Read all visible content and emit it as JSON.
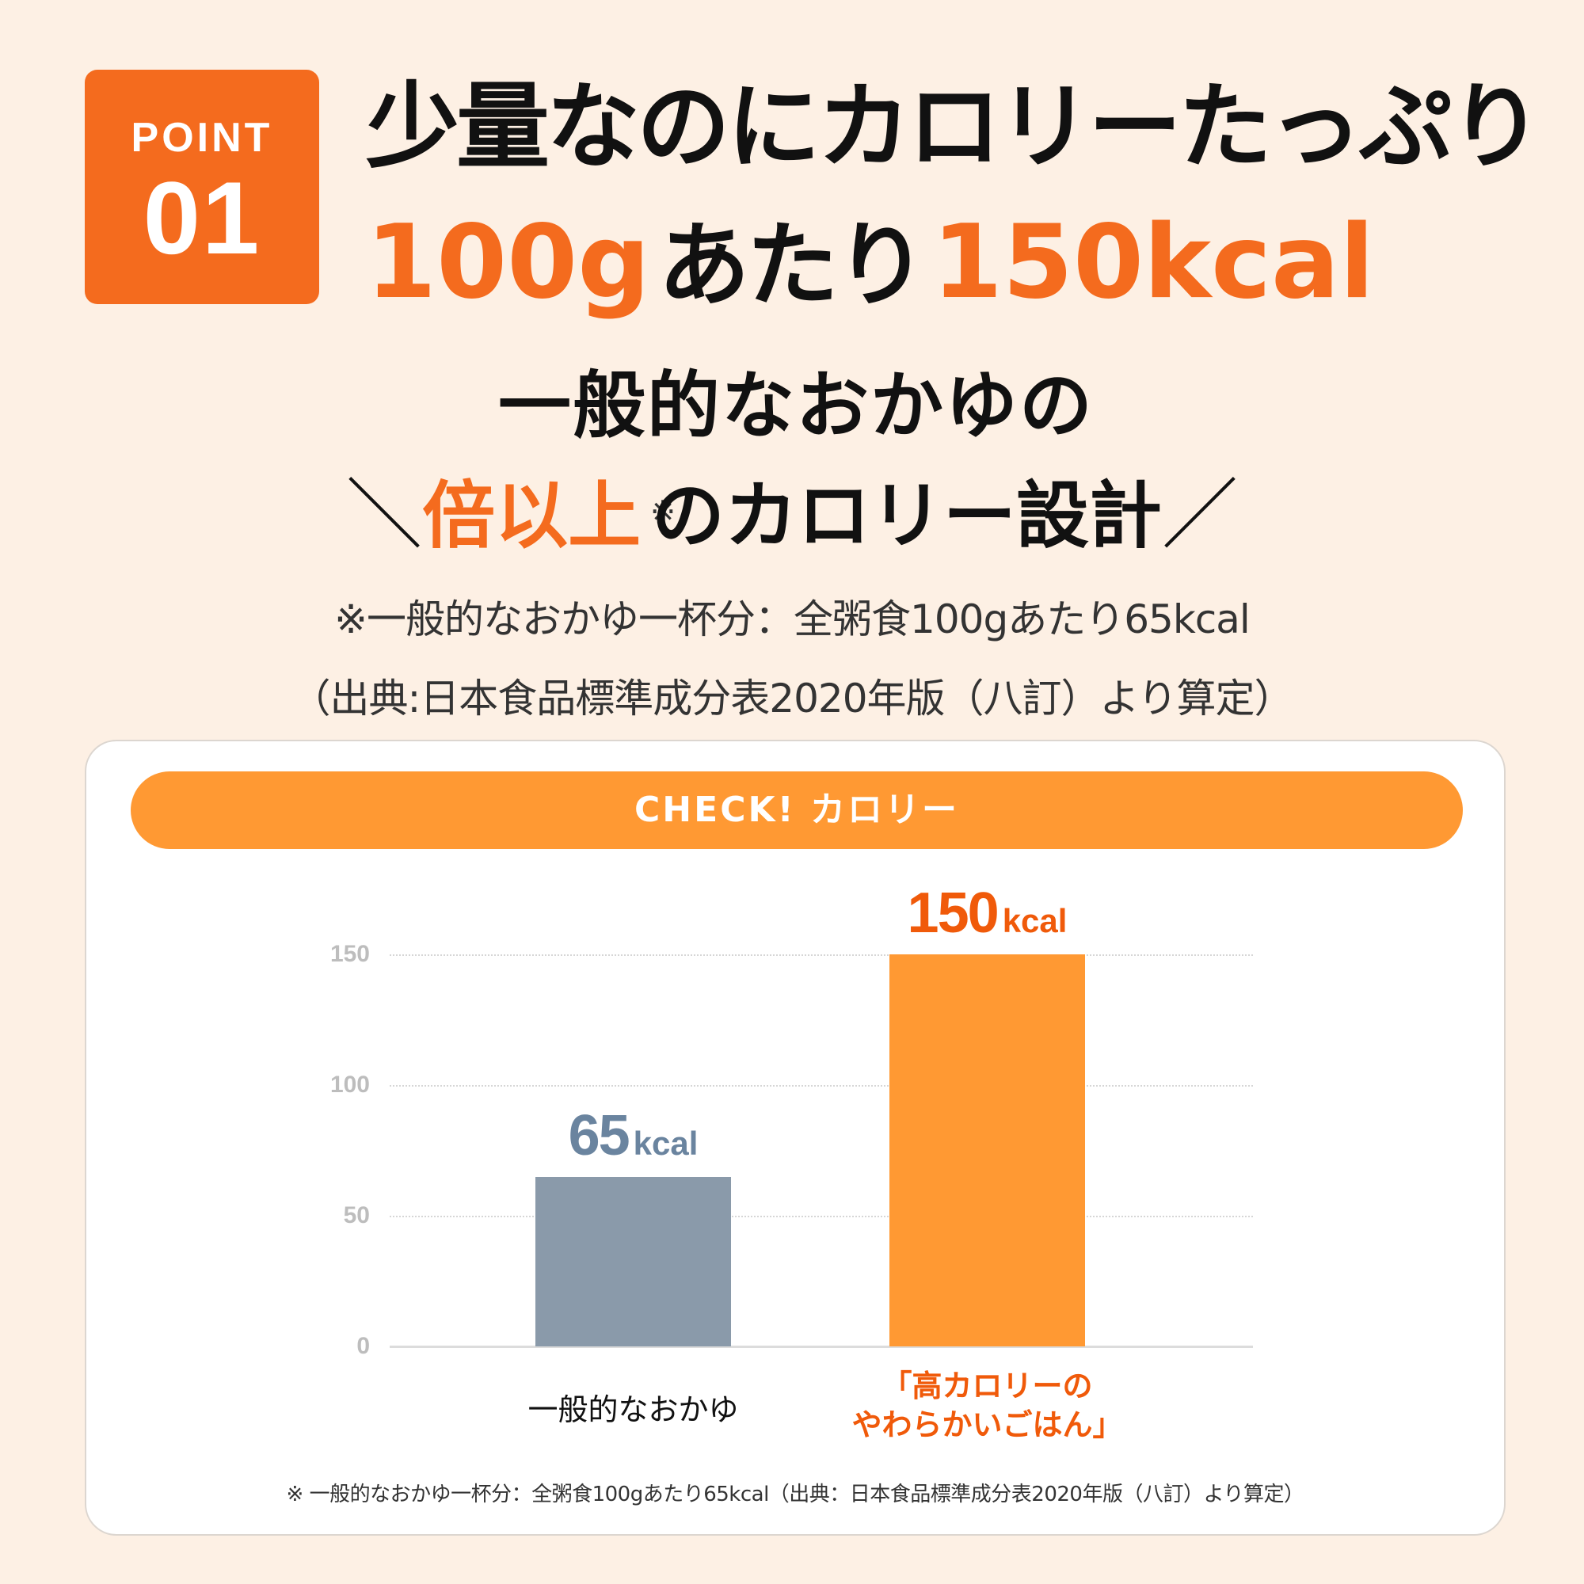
{
  "badge": {
    "label": "POINT",
    "number": "01"
  },
  "headline": {
    "line1": "少量なのにカロリーたっぷり",
    "line2_amount": "100g",
    "line2_middle": "あたり",
    "line2_kcal": "150kcal"
  },
  "subhead": {
    "line1": "一般的なおかゆの",
    "slash_left": "＼",
    "accent": "倍以上",
    "note_mark": "※",
    "rest": "のカロリー設計",
    "slash_right": "／"
  },
  "notes": {
    "line1": "※一般的なおかゆ一杯分：全粥食100gあたり65kcal",
    "line2": "（出典:日本食品標準成分表2020年版（八訂）より算定）"
  },
  "card": {
    "title": "CHECK! カロリー",
    "footnote": "※ 一般的なおかゆ一杯分：全粥食100gあたり65kcal（出典：日本食品標準成分表2020年版（八訂）より算定）"
  },
  "colors": {
    "background": "#FDF0E4",
    "badge": "#F46B1E",
    "accent_text": "#F46B1E",
    "pill": "#FF9933",
    "bar_general": "#8A9AAA",
    "bar_product": "#FF9933",
    "label_general": "#6A849F",
    "label_product": "#F05A0A"
  },
  "chart_data": {
    "type": "bar",
    "title": "CHECK! カロリー",
    "xlabel": "",
    "ylabel": "kcal",
    "ylim": [
      0,
      150
    ],
    "yticks": [
      0,
      50,
      100,
      150
    ],
    "grid": true,
    "categories": [
      "一般的なおかゆ",
      "「高カロリーのやわらかいごはん」"
    ],
    "category_lines": [
      [
        "一般的なおかゆ"
      ],
      [
        "「高カロリーの",
        "やわらかいごはん」"
      ]
    ],
    "values": [
      65,
      150
    ],
    "value_labels": [
      {
        "num": "65",
        "unit": "kcal"
      },
      {
        "num": "150",
        "unit": "kcal"
      }
    ],
    "legend": null
  }
}
